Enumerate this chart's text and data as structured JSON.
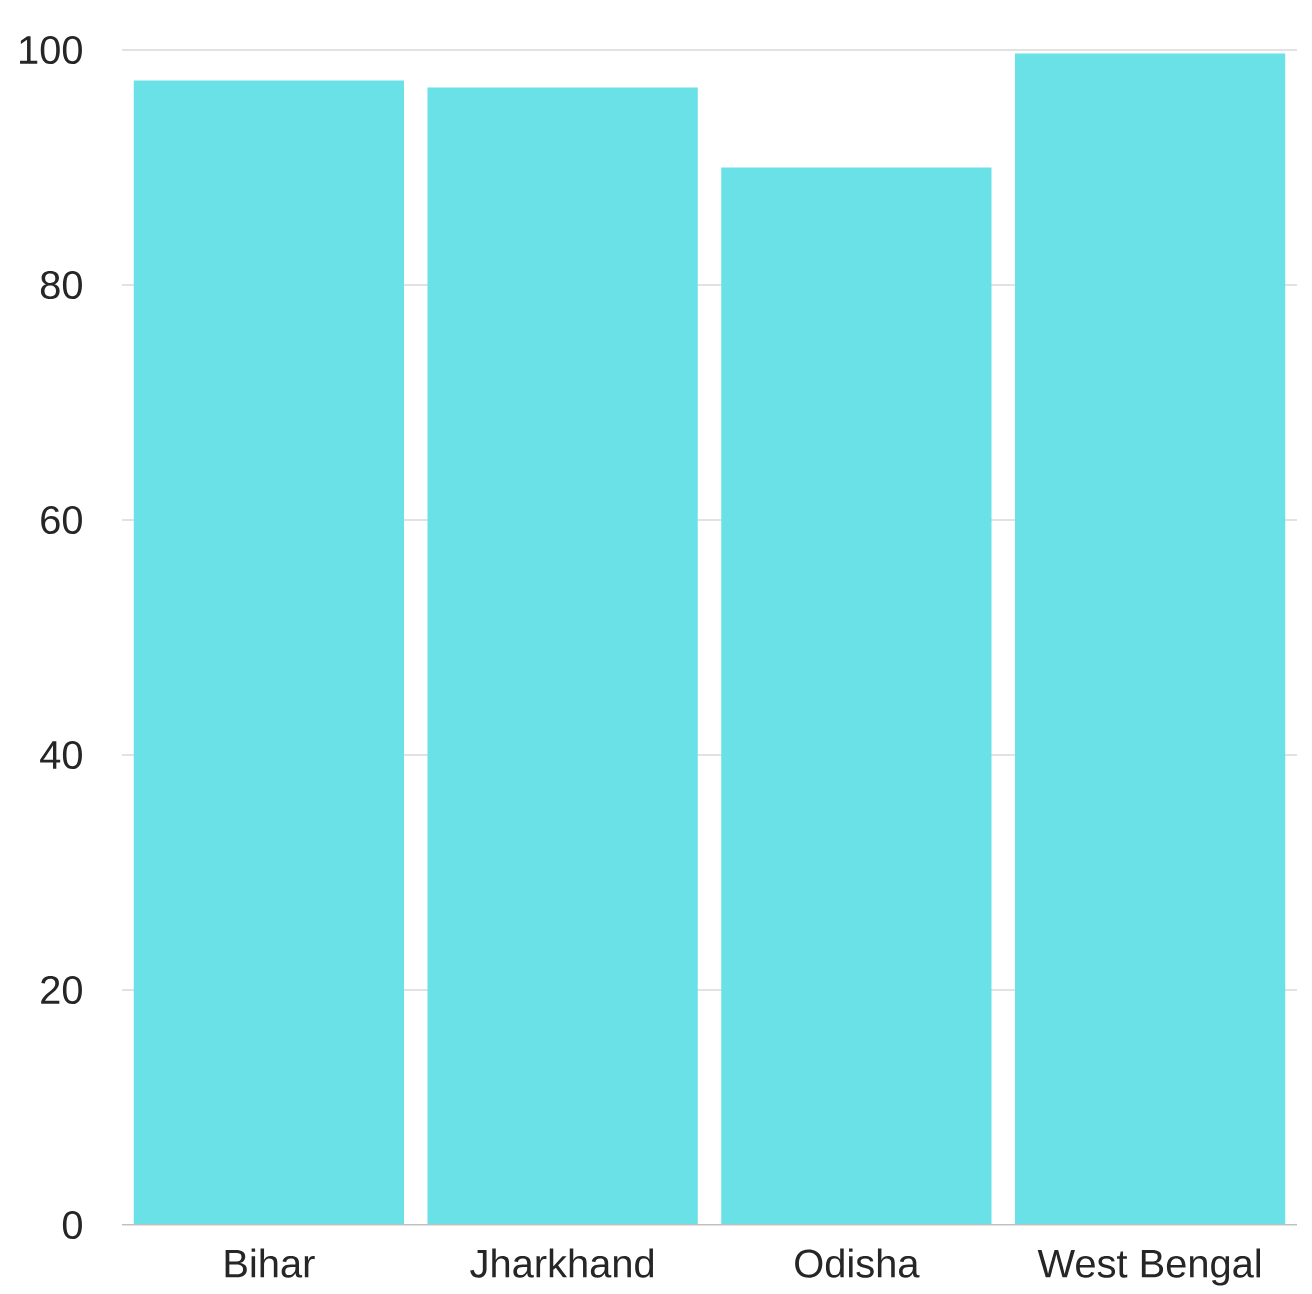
{
  "chart_data": {
    "type": "bar",
    "categories": [
      "Bihar",
      "Jharkhand",
      "Odisha",
      "West Bengal"
    ],
    "values": [
      97.4,
      96.8,
      90.0,
      99.7
    ],
    "color": "#6ae1e6",
    "ylim": [
      0,
      100
    ],
    "yticks": [
      0,
      20,
      40,
      60,
      80,
      100
    ],
    "grid": "y"
  }
}
